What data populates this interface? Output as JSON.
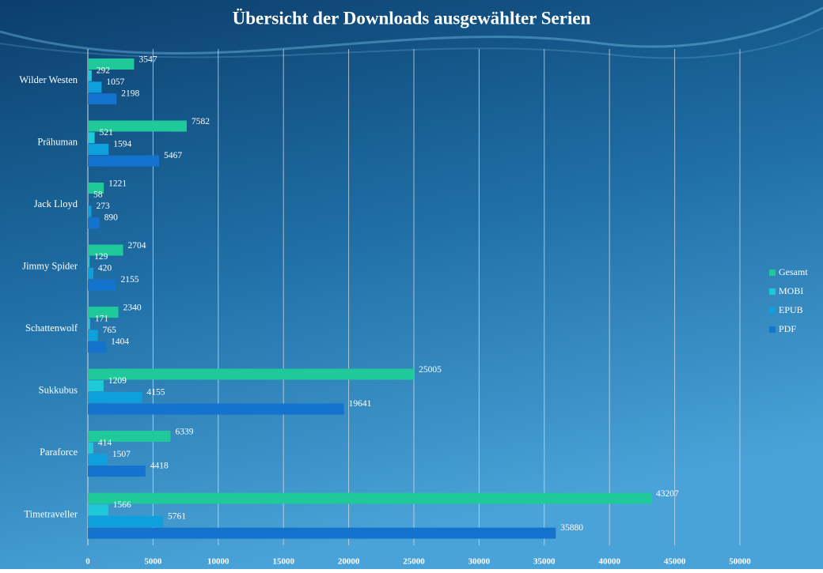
{
  "chart_data": {
    "type": "hbar",
    "title": "Übersicht der Downloads ausgewählter Serien",
    "categories": [
      "Wilder Westen",
      "Prähuman",
      "Jack Lloyd",
      "Jimmy Spider",
      "Schattenwolf",
      "Sukkubus",
      "Paraforce",
      "Timetraveller"
    ],
    "series": [
      {
        "name": "Gesamt",
        "color": "#1fc99a",
        "values": [
          3547,
          7582,
          1221,
          2704,
          2340,
          25005,
          6339,
          43207
        ]
      },
      {
        "name": "MOBI",
        "color": "#1ec8d8",
        "values": [
          292,
          521,
          58,
          129,
          171,
          1209,
          414,
          1566
        ]
      },
      {
        "name": "EPUB",
        "color": "#0ea0dc",
        "values": [
          1057,
          1594,
          273,
          420,
          765,
          4155,
          1507,
          5761
        ]
      },
      {
        "name": "PDF",
        "color": "#1473cc",
        "values": [
          2198,
          5467,
          890,
          2155,
          1404,
          19641,
          4418,
          35880
        ]
      }
    ],
    "xlim": [
      0,
      50000
    ],
    "xticks": [
      0,
      5000,
      10000,
      15000,
      20000,
      25000,
      30000,
      35000,
      40000,
      45000,
      50000
    ],
    "grid": true,
    "legend": "right"
  }
}
